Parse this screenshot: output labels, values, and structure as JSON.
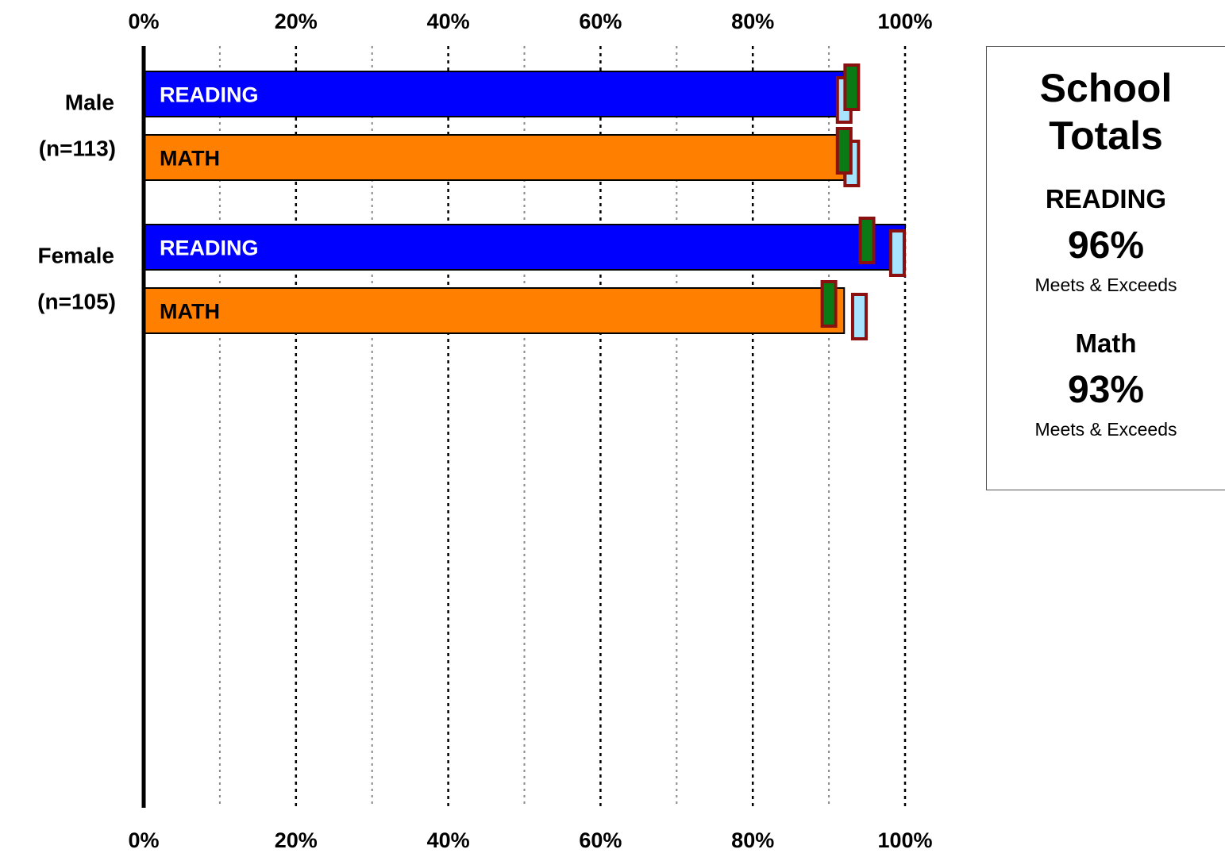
{
  "chart_data": {
    "type": "bar",
    "orientation": "horizontal",
    "x_ticks": [
      "0%",
      "20%",
      "40%",
      "60%",
      "80%",
      "100%"
    ],
    "xlim": [
      0,
      100
    ],
    "grid": true,
    "groups": [
      {
        "label": "Male",
        "n_label": "(n=113)",
        "bars": [
          {
            "label": "READING",
            "value": 92,
            "color": "#0000ff",
            "label_color": "#ffffff",
            "marker_green": 93,
            "marker_blue": 92
          },
          {
            "label": "MATH",
            "value": 92,
            "color": "#ff8000",
            "label_color": "#000000",
            "marker_green": 92,
            "marker_blue": 93
          }
        ]
      },
      {
        "label": "Female",
        "n_label": "(n=105)",
        "bars": [
          {
            "label": "READING",
            "value": 100,
            "color": "#0000ff",
            "label_color": "#ffffff",
            "marker_green": 95,
            "marker_blue": 99
          },
          {
            "label": "MATH",
            "value": 92,
            "color": "#ff8000",
            "label_color": "#000000",
            "marker_green": 90,
            "marker_blue": 94
          }
        ]
      }
    ]
  },
  "totals": {
    "title_line1": "School",
    "title_line2": "Totals",
    "reading_label": "READING",
    "reading_value": "96%",
    "reading_note": "Meets & Exceeds",
    "math_label": "Math",
    "math_value": "93%",
    "math_note": "Meets & Exceeds"
  }
}
